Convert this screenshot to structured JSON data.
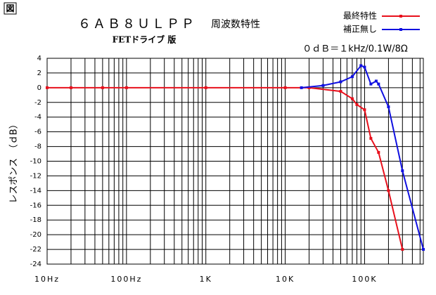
{
  "chart_data": {
    "type": "line",
    "figure_label": "図",
    "title": "６ＡＢ８ＵＬＰＰ",
    "title_suffix": "周波数特性",
    "subtitle": "FETドライブ 版",
    "note": "０ｄＢ＝１kHz/0.1W/8Ω",
    "y_label": "レスポンス　（ｄB）",
    "x_log": true,
    "grid": true,
    "legend": "top-right",
    "xlim": [
      10,
      550000
    ],
    "xticks": [
      {
        "value": 10,
        "label": "10Hz"
      },
      {
        "value": 100,
        "label": "100Hz"
      },
      {
        "value": 1000,
        "label": "1K"
      },
      {
        "value": 10000,
        "label": "10K"
      },
      {
        "value": 100000,
        "label": "100K"
      }
    ],
    "ylim": [
      -24,
      4
    ],
    "yticks": [
      4,
      2,
      0,
      -2,
      -4,
      -6,
      -8,
      -10,
      -12,
      -14,
      -16,
      -18,
      -20,
      -22,
      -24
    ],
    "series": [
      {
        "name": "最終特性",
        "color": "#e8101c",
        "x": [
          10,
          20,
          50,
          100,
          1000,
          10000,
          20000,
          50000,
          70000,
          80000,
          100000,
          120000,
          150000,
          200000,
          300000
        ],
        "values": [
          0,
          0,
          0,
          0,
          0,
          0,
          0,
          -0.5,
          -1.5,
          -2.3,
          -3,
          -6.9,
          -8.8,
          -14,
          -22
        ]
      },
      {
        "name": "補正無し",
        "color": "#1010e0",
        "x": [
          16000,
          30000,
          50000,
          70000,
          90000,
          100000,
          120000,
          140000,
          150000,
          200000,
          300000,
          550000
        ],
        "values": [
          0,
          0.3,
          0.8,
          1.5,
          3,
          2.8,
          0.5,
          0.9,
          0.5,
          -2.6,
          -11.3,
          -22
        ]
      }
    ]
  }
}
